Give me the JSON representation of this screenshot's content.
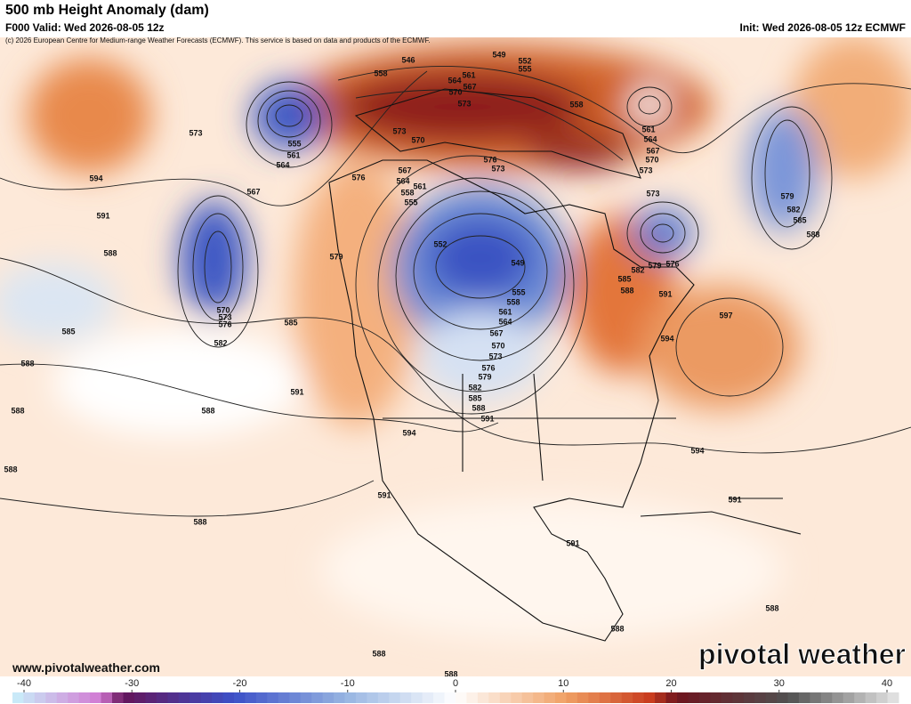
{
  "header": {
    "title": "500 mb Height Anomaly (dam)",
    "valid": "F000 Valid: Wed 2026-08-05 12z",
    "init": "Init: Wed 2026-08-05 12z ECMWF",
    "credit": "(c) 2026 European Centre for Medium-range Weather Forecasts (ECMWF). This service is based on data and products of the ECMWF."
  },
  "map": {
    "contour_labels": [
      546,
      549,
      552,
      555,
      558,
      561,
      564,
      567,
      570,
      573,
      558,
      561,
      564,
      567,
      570,
      573,
      573,
      573,
      570,
      576,
      573,
      555,
      561,
      564,
      567,
      576,
      567,
      564,
      561,
      558,
      555,
      594,
      591,
      588,
      573,
      579,
      582,
      585,
      588,
      552,
      549,
      555,
      558,
      561,
      564,
      567,
      570,
      573,
      576,
      579,
      582,
      585,
      588,
      591,
      576,
      579,
      582,
      585,
      588,
      591,
      597,
      594,
      570,
      573,
      576,
      582,
      585,
      585,
      588,
      579,
      591,
      588,
      594,
      594,
      588,
      591,
      591,
      591,
      588,
      588,
      588,
      588,
      588,
      588
    ]
  },
  "footer": {
    "url": "www.pivotalweather.com",
    "logo": "pivotal weather"
  },
  "colorbar": {
    "ticks": [
      -40,
      -30,
      -20,
      -10,
      0,
      10,
      20,
      30,
      40
    ]
  }
}
